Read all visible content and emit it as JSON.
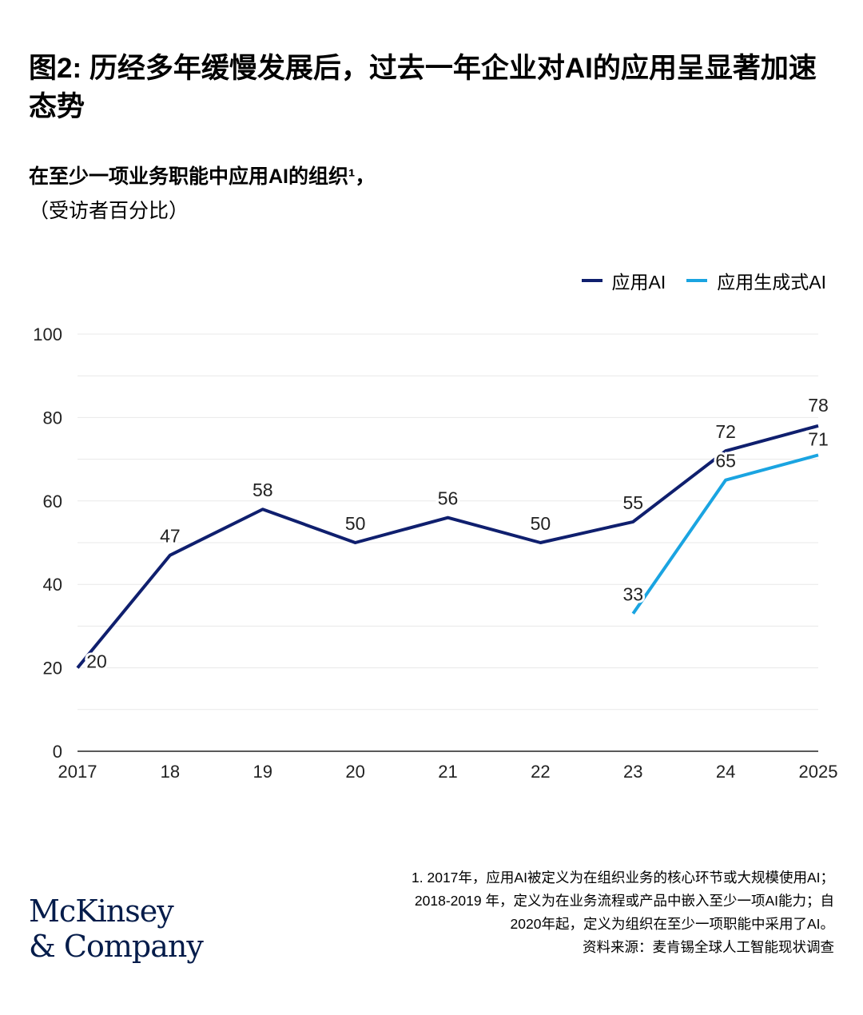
{
  "title": "图2: 历经多年缓慢发展后，过去一年企业对AI的应用呈显著加速态势",
  "subtitle": "在至少一项业务职能中应用AI的组织¹，",
  "unit": "（受访者百分比）",
  "footnote": {
    "lines": [
      "1.   2017年，应用AI被定义为在组织业务的核心环节或大规模使用AI；",
      "2018-2019 年，定义为在业务流程或产品中嵌入至少一项AI能力；自",
      "2020年起，定义为组织在至少一项职能中采用了AI。"
    ],
    "source": "资料来源：麦肯锡全球人工智能现状调查"
  },
  "logo": {
    "line1": "McKinsey",
    "line2": "& Company"
  },
  "chart_data": {
    "type": "line",
    "categories": [
      "2017",
      "18",
      "19",
      "20",
      "21",
      "22",
      "23",
      "24",
      "2025"
    ],
    "series": [
      {
        "name": "应用AI",
        "color": "#0f1f6e",
        "values": [
          20,
          47,
          58,
          50,
          56,
          50,
          55,
          72,
          78
        ]
      },
      {
        "name": "应用生成式AI",
        "color": "#1aa4e1",
        "values": [
          null,
          null,
          null,
          null,
          null,
          null,
          33,
          65,
          71
        ]
      }
    ],
    "yticks": [
      0,
      20,
      40,
      60,
      80,
      100
    ],
    "ylim": [
      0,
      100
    ],
    "grid": true,
    "legend": "top-right"
  }
}
